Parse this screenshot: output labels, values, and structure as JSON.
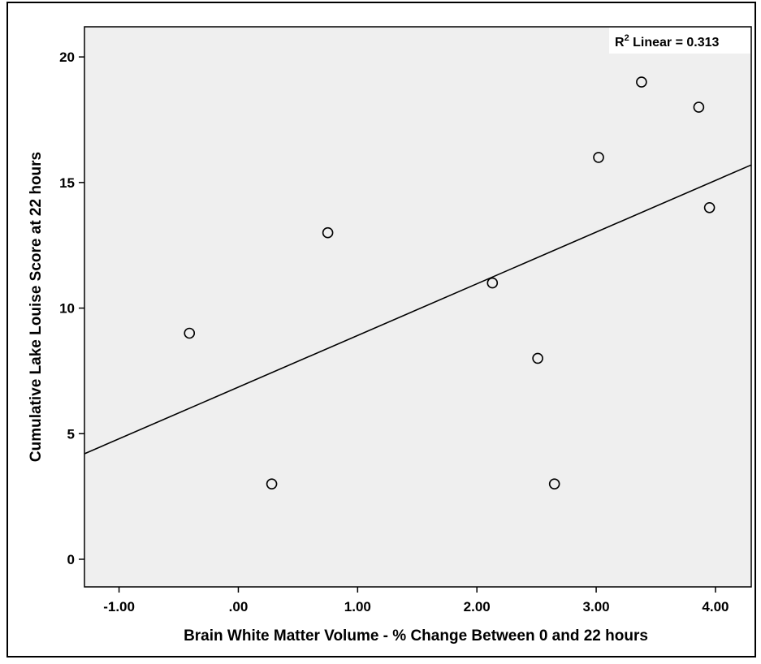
{
  "chart_data": {
    "type": "scatter",
    "title": "",
    "xlabel": "Brain White Matter Volume - % Change Between 0 and 22 hours",
    "ylabel": "Cumulative Lake Louise Score at 22 hours",
    "xlim": [
      -1.29,
      4.3
    ],
    "ylim": [
      -1.1,
      21.2
    ],
    "x_ticks": [
      -1.0,
      0.0,
      1.0,
      2.0,
      3.0,
      4.0
    ],
    "x_tick_labels": [
      "-1.00",
      ".00",
      "1.00",
      "2.00",
      "3.00",
      "4.00"
    ],
    "y_ticks": [
      0,
      5,
      10,
      15,
      20
    ],
    "y_tick_labels": [
      "0",
      "5",
      "10",
      "15",
      "20"
    ],
    "points": [
      {
        "x": -0.41,
        "y": 9
      },
      {
        "x": 0.28,
        "y": 3
      },
      {
        "x": 0.75,
        "y": 13
      },
      {
        "x": 2.13,
        "y": 11
      },
      {
        "x": 2.51,
        "y": 8
      },
      {
        "x": 2.65,
        "y": 3
      },
      {
        "x": 3.02,
        "y": 16
      },
      {
        "x": 3.38,
        "y": 19
      },
      {
        "x": 3.86,
        "y": 18
      },
      {
        "x": 3.95,
        "y": 14
      }
    ],
    "fit_line": {
      "x": [
        -1.29,
        4.3
      ],
      "y": [
        4.2,
        15.7
      ]
    },
    "r2_annotation": {
      "prefix": "R",
      "superscript": "2",
      "text": " Linear = 0.313"
    },
    "grid": false,
    "marker": "open-circle",
    "colors": {
      "plot_background": "#efefef",
      "axis": "#000000",
      "line": "#000000",
      "marker_edge": "#000000"
    }
  }
}
